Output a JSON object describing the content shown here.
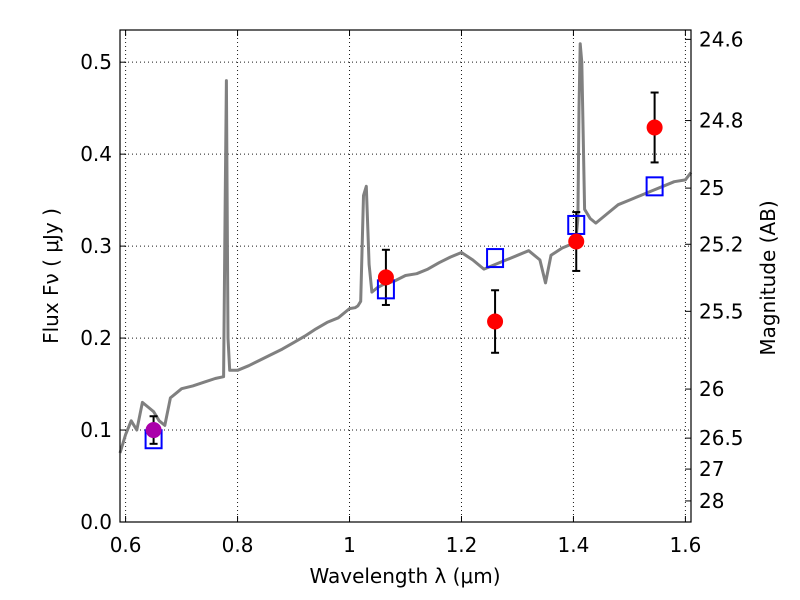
{
  "chart_data": {
    "type": "scatter",
    "title": "",
    "xlabel": "Wavelength  λ (μm)",
    "ylabel": "Flux  Fν ( μJy )",
    "ylabel_right": "Magnitude (AB)",
    "xlim": [
      0.59,
      1.61
    ],
    "ylim": [
      0.0,
      0.535
    ],
    "grid": true,
    "x_ticks": [
      {
        "v": 0.6,
        "label": "0.6"
      },
      {
        "v": 0.8,
        "label": "0.8"
      },
      {
        "v": 1.0,
        "label": "1"
      },
      {
        "v": 1.2,
        "label": "1.2"
      },
      {
        "v": 1.4,
        "label": "1.4"
      },
      {
        "v": 1.6,
        "label": "1.6"
      }
    ],
    "y_ticks": [
      {
        "v": 0.0,
        "label": "0.0"
      },
      {
        "v": 0.1,
        "label": "0.1"
      },
      {
        "v": 0.2,
        "label": "0.2"
      },
      {
        "v": 0.3,
        "label": "0.3"
      },
      {
        "v": 0.4,
        "label": "0.4"
      },
      {
        "v": 0.5,
        "label": "0.5"
      }
    ],
    "right_ticks": [
      {
        "mag": 24.6,
        "label": "24.6"
      },
      {
        "mag": 24.8,
        "label": "24.8"
      },
      {
        "mag": 25.0,
        "label": "25"
      },
      {
        "mag": 25.2,
        "label": "25.2"
      },
      {
        "mag": 25.5,
        "label": "25.5"
      },
      {
        "mag": 26.0,
        "label": "26"
      },
      {
        "mag": 26.5,
        "label": "26.5"
      },
      {
        "mag": 27.0,
        "label": "27"
      },
      {
        "mag": 28.0,
        "label": "28"
      }
    ],
    "series": [
      {
        "kind": "spectrum",
        "color": "#808080",
        "points": [
          [
            0.59,
            0.075
          ],
          [
            0.6,
            0.095
          ],
          [
            0.61,
            0.11
          ],
          [
            0.62,
            0.1
          ],
          [
            0.63,
            0.13
          ],
          [
            0.64,
            0.125
          ],
          [
            0.65,
            0.12
          ],
          [
            0.66,
            0.11
          ],
          [
            0.67,
            0.105
          ],
          [
            0.68,
            0.135
          ],
          [
            0.69,
            0.14
          ],
          [
            0.7,
            0.145
          ],
          [
            0.72,
            0.148
          ],
          [
            0.74,
            0.152
          ],
          [
            0.76,
            0.156
          ],
          [
            0.775,
            0.158
          ],
          [
            0.778,
            0.35
          ],
          [
            0.78,
            0.48
          ],
          [
            0.783,
            0.2
          ],
          [
            0.786,
            0.165
          ],
          [
            0.8,
            0.165
          ],
          [
            0.82,
            0.17
          ],
          [
            0.84,
            0.176
          ],
          [
            0.86,
            0.182
          ],
          [
            0.88,
            0.188
          ],
          [
            0.9,
            0.195
          ],
          [
            0.92,
            0.202
          ],
          [
            0.94,
            0.21
          ],
          [
            0.96,
            0.217
          ],
          [
            0.98,
            0.222
          ],
          [
            1.0,
            0.232
          ],
          [
            1.01,
            0.233
          ],
          [
            1.015,
            0.235
          ],
          [
            1.02,
            0.24
          ],
          [
            1.025,
            0.355
          ],
          [
            1.03,
            0.365
          ],
          [
            1.035,
            0.28
          ],
          [
            1.04,
            0.25
          ],
          [
            1.05,
            0.255
          ],
          [
            1.06,
            0.258
          ],
          [
            1.08,
            0.262
          ],
          [
            1.1,
            0.268
          ],
          [
            1.12,
            0.27
          ],
          [
            1.14,
            0.275
          ],
          [
            1.16,
            0.282
          ],
          [
            1.18,
            0.288
          ],
          [
            1.2,
            0.293
          ],
          [
            1.22,
            0.285
          ],
          [
            1.24,
            0.275
          ],
          [
            1.26,
            0.28
          ],
          [
            1.28,
            0.285
          ],
          [
            1.3,
            0.29
          ],
          [
            1.32,
            0.295
          ],
          [
            1.34,
            0.285
          ],
          [
            1.35,
            0.26
          ],
          [
            1.36,
            0.29
          ],
          [
            1.38,
            0.298
          ],
          [
            1.4,
            0.303
          ],
          [
            1.405,
            0.31
          ],
          [
            1.408,
            0.33
          ],
          [
            1.41,
            0.45
          ],
          [
            1.412,
            0.52
          ],
          [
            1.415,
            0.5
          ],
          [
            1.42,
            0.34
          ],
          [
            1.43,
            0.33
          ],
          [
            1.44,
            0.325
          ],
          [
            1.46,
            0.335
          ],
          [
            1.48,
            0.345
          ],
          [
            1.5,
            0.35
          ],
          [
            1.52,
            0.355
          ],
          [
            1.54,
            0.36
          ],
          [
            1.56,
            0.365
          ],
          [
            1.58,
            0.37
          ],
          [
            1.6,
            0.372
          ],
          [
            1.61,
            0.38
          ]
        ]
      },
      {
        "kind": "model_photometry",
        "marker": "open-square",
        "color": "#0000ff",
        "points": [
          [
            0.65,
            0.09
          ],
          [
            1.065,
            0.253
          ],
          [
            1.26,
            0.287
          ],
          [
            1.405,
            0.323
          ],
          [
            1.545,
            0.365
          ]
        ]
      },
      {
        "kind": "observed_photometry",
        "marker": "filled-circle",
        "color": "#ff0000",
        "points": [
          [
            1.065,
            0.266,
            0.03
          ],
          [
            1.26,
            0.218,
            0.034
          ],
          [
            1.405,
            0.305,
            0.032
          ],
          [
            1.545,
            0.429,
            0.038
          ]
        ]
      },
      {
        "kind": "observed_photometry",
        "marker": "filled-circle",
        "color": "#aa00aa",
        "points": [
          [
            0.65,
            0.1,
            0.015
          ]
        ]
      }
    ]
  }
}
